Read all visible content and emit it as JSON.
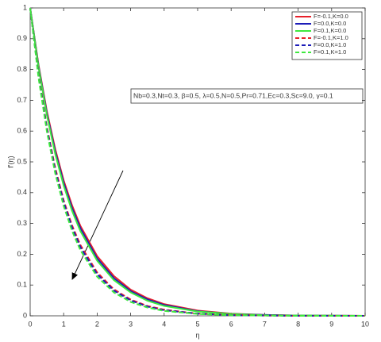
{
  "chart_data": {
    "type": "line",
    "x_label": "η",
    "y_label": "f'(η)",
    "annotation": "Nb=0.3,Nt=0.3, β=0.5, λ=0.5,N=0.5,Pr=0.71,Ec=0.3,Sc=9.0, γ=0.1",
    "x": [
      0,
      0.25,
      0.5,
      0.75,
      1,
      1.25,
      1.5,
      2,
      2.5,
      3,
      3.5,
      4,
      5,
      6,
      7,
      8,
      10
    ],
    "series": [
      {
        "name": "F=-0.1,K=0.0",
        "color": "#e8202a",
        "style": "solid",
        "values": [
          1,
          0.815,
          0.664,
          0.541,
          0.44,
          0.359,
          0.292,
          0.194,
          0.129,
          0.085,
          0.057,
          0.038,
          0.017,
          0.007,
          0.003,
          0.001,
          0
        ]
      },
      {
        "name": "F=0.0,K=0.0",
        "color": "#1c1cb8",
        "style": "solid",
        "values": [
          1,
          0.811,
          0.657,
          0.533,
          0.432,
          0.35,
          0.284,
          0.186,
          0.122,
          0.08,
          0.053,
          0.035,
          0.015,
          0.006,
          0.003,
          0.001,
          0
        ]
      },
      {
        "name": "F=0.1,K=0.0",
        "color": "#3ee83e",
        "style": "solid",
        "values": [
          1,
          0.807,
          0.651,
          0.525,
          0.423,
          0.341,
          0.275,
          0.179,
          0.116,
          0.076,
          0.049,
          0.032,
          0.014,
          0.006,
          0.002,
          0.001,
          0
        ]
      },
      {
        "name": "F=-0.1,K=1.0",
        "color": "#e8202a",
        "style": "dashed",
        "values": [
          1,
          0.783,
          0.613,
          0.48,
          0.375,
          0.294,
          0.23,
          0.141,
          0.086,
          0.053,
          0.032,
          0.02,
          0.007,
          0.003,
          0.001,
          0,
          0
        ]
      },
      {
        "name": "F=0.0,K=1.0",
        "color": "#1c1cb8",
        "style": "dashed",
        "values": [
          1,
          0.779,
          0.607,
          0.472,
          0.368,
          0.287,
          0.223,
          0.135,
          0.082,
          0.05,
          0.03,
          0.018,
          0.007,
          0.002,
          0.001,
          0,
          0
        ]
      },
      {
        "name": "F=0.1,K=1.0",
        "color": "#3ee83e",
        "style": "dashed",
        "values": [
          1,
          0.773,
          0.598,
          0.462,
          0.357,
          0.276,
          0.213,
          0.127,
          0.076,
          0.045,
          0.027,
          0.016,
          0.006,
          0.002,
          0.001,
          0,
          0
        ]
      }
    ],
    "xlim": [
      0,
      10
    ],
    "xticks": [
      0,
      1,
      2,
      3,
      4,
      5,
      6,
      7,
      8,
      9,
      10
    ],
    "ylim": [
      0,
      1
    ],
    "yticks": [
      0,
      0.1,
      0.2,
      0.3,
      0.4,
      0.5,
      0.6,
      0.7,
      0.8,
      0.9,
      1
    ],
    "grid": false,
    "legend": "northeast"
  }
}
